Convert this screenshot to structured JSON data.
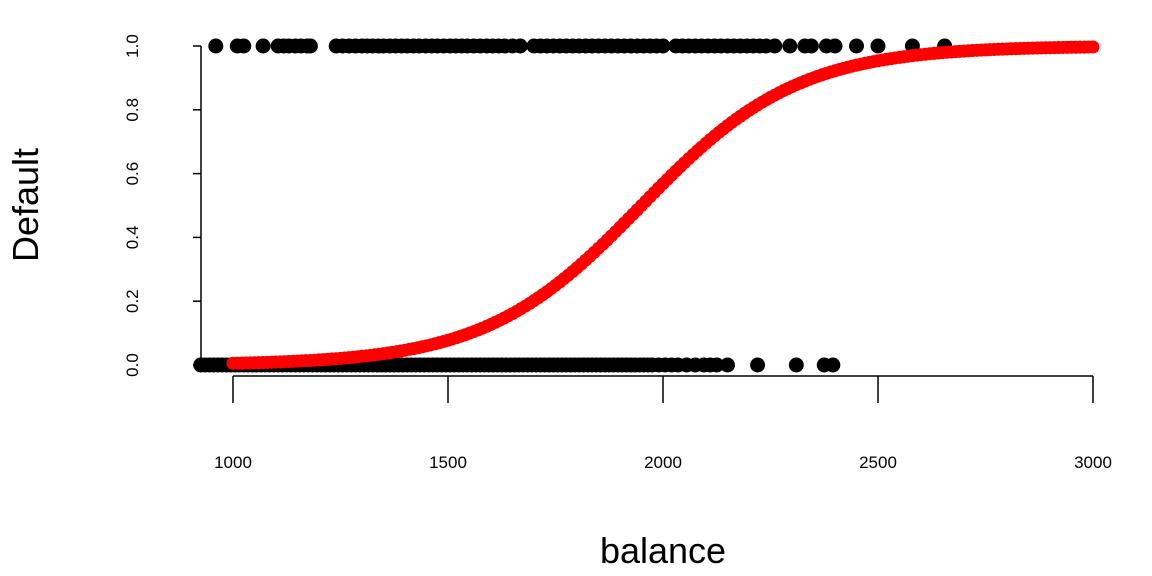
{
  "chart_data": {
    "type": "scatter",
    "xlabel": "balance",
    "ylabel": "Default",
    "xlim": [
      920,
      3000
    ],
    "ylim": [
      0,
      1
    ],
    "xticks": [
      1000,
      1500,
      2000,
      2500,
      3000
    ],
    "yticks": [
      0.0,
      0.2,
      0.4,
      0.6,
      0.8,
      1.0
    ],
    "xtick_labels": [
      "1000",
      "1500",
      "2000",
      "2500",
      "3000"
    ],
    "ytick_labels": [
      "0.0",
      "0.2",
      "0.4",
      "0.6",
      "0.8",
      "1.0"
    ],
    "grid": false,
    "legend": "none",
    "colors": {
      "observed": "#000000",
      "fitted": "#ff0000"
    },
    "observed_default_1": [
      960,
      1010,
      1025,
      1070,
      1105,
      1118,
      1130,
      1145,
      1158,
      1172,
      1180,
      1240,
      1255,
      1270,
      1285,
      1300,
      1312,
      1325,
      1338,
      1350,
      1365,
      1378,
      1392,
      1405,
      1420,
      1433,
      1448,
      1462,
      1475,
      1490,
      1505,
      1518,
      1532,
      1545,
      1560,
      1575,
      1590,
      1604,
      1618,
      1632,
      1650,
      1668,
      1700,
      1715,
      1730,
      1745,
      1760,
      1775,
      1790,
      1805,
      1820,
      1835,
      1850,
      1865,
      1880,
      1895,
      1910,
      1925,
      1940,
      1955,
      1970,
      1985,
      2000,
      2030,
      2045,
      2060,
      2075,
      2090,
      2105,
      2120,
      2135,
      2150,
      2165,
      2180,
      2195,
      2210,
      2225,
      2240,
      2260,
      2295,
      2330,
      2345,
      2380,
      2400,
      2450,
      2500,
      2580,
      2655
    ],
    "observed_default_0": [
      925,
      935,
      945,
      955,
      965,
      975,
      985,
      995,
      1005,
      1015,
      1025,
      1035,
      1045,
      1055,
      1065,
      1075,
      1085,
      1095,
      1105,
      1115,
      1125,
      1135,
      1145,
      1155,
      1165,
      1175,
      1185,
      1195,
      1205,
      1215,
      1225,
      1235,
      1245,
      1255,
      1265,
      1275,
      1285,
      1295,
      1305,
      1315,
      1325,
      1335,
      1345,
      1355,
      1365,
      1375,
      1385,
      1395,
      1405,
      1415,
      1425,
      1435,
      1445,
      1455,
      1465,
      1475,
      1485,
      1495,
      1505,
      1515,
      1525,
      1535,
      1545,
      1555,
      1565,
      1575,
      1585,
      1595,
      1605,
      1615,
      1625,
      1635,
      1645,
      1655,
      1665,
      1675,
      1685,
      1695,
      1705,
      1715,
      1725,
      1735,
      1745,
      1755,
      1765,
      1775,
      1785,
      1795,
      1805,
      1815,
      1825,
      1835,
      1845,
      1855,
      1865,
      1875,
      1885,
      1895,
      1905,
      1915,
      1925,
      1935,
      1945,
      1955,
      1965,
      1975,
      1990,
      2005,
      2020,
      2035,
      2055,
      2075,
      2095,
      2110,
      2125,
      2150,
      2220,
      2310,
      2375,
      2395
    ],
    "fitted_curve": {
      "x_range": [
        1000,
        3000
      ],
      "n_points": 201,
      "function": "logistic",
      "midpoint": 1950,
      "slope": 0.0055
    }
  }
}
